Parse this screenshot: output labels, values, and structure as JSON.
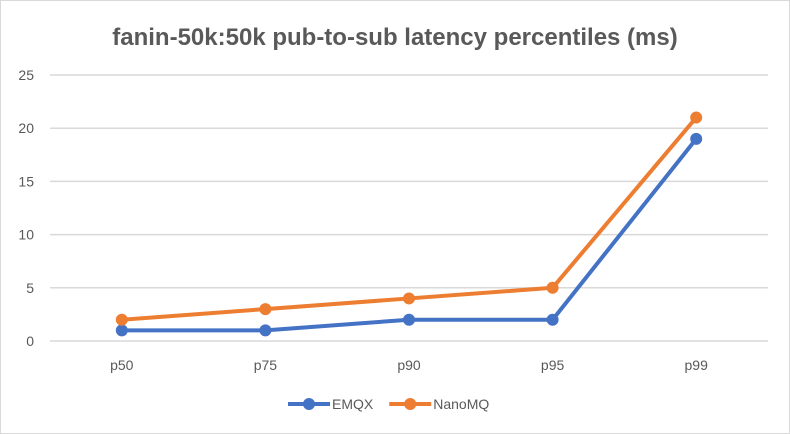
{
  "chart_data": {
    "type": "line",
    "title": "fanin-50k:50k pub-to-sub latency percentiles (ms)",
    "categories": [
      "p50",
      "p75",
      "p90",
      "p95",
      "p99"
    ],
    "ylim": [
      0,
      25
    ],
    "yticks": [
      0,
      5,
      10,
      15,
      20,
      25
    ],
    "grid": true,
    "legend": "bottom",
    "series": [
      {
        "name": "EMQX",
        "values": [
          1,
          1,
          2,
          2,
          19
        ],
        "color": "#4472c4"
      },
      {
        "name": "NanoMQ",
        "values": [
          2,
          3,
          4,
          5,
          21
        ],
        "color": "#ed7d31"
      }
    ]
  }
}
